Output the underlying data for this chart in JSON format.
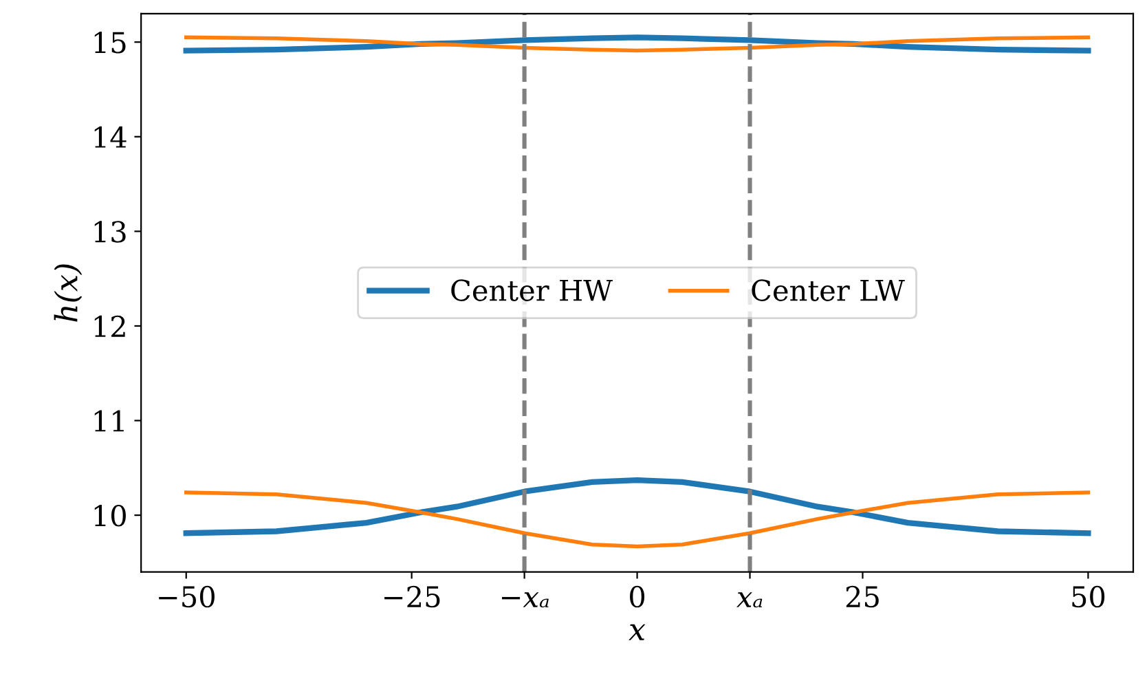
{
  "chart_data": {
    "type": "line",
    "xlabel": "x",
    "ylabel": "h(x)",
    "x": [
      -50,
      -40,
      -30,
      -24,
      -20,
      -12.5,
      -5,
      0,
      5,
      12.5,
      20,
      24,
      30,
      40,
      50
    ],
    "series": [
      {
        "name": "Center HW",
        "color": "#1f77b4",
        "values": [
          14.91,
          14.92,
          14.95,
          14.98,
          14.99,
          15.02,
          15.04,
          15.05,
          15.04,
          15.02,
          14.99,
          14.98,
          14.95,
          14.92,
          14.91
        ]
      },
      {
        "name": "Center LW",
        "color": "#ff7f0e",
        "values": [
          15.05,
          15.04,
          15.01,
          14.98,
          14.97,
          14.94,
          14.92,
          14.91,
          14.92,
          14.94,
          14.97,
          14.98,
          15.01,
          15.04,
          15.05
        ]
      },
      {
        "color": "#1f77b4",
        "values": [
          9.81,
          9.83,
          9.92,
          10.03,
          10.09,
          10.25,
          10.35,
          10.37,
          10.35,
          10.25,
          10.09,
          10.03,
          9.92,
          9.83,
          9.81
        ]
      },
      {
        "color": "#ff7f0e",
        "values": [
          10.24,
          10.22,
          10.13,
          10.03,
          9.96,
          9.81,
          9.69,
          9.67,
          9.69,
          9.81,
          9.96,
          10.03,
          10.13,
          10.22,
          10.24
        ]
      }
    ],
    "xlim": [
      -55,
      55
    ],
    "ylim": [
      9.4,
      15.3
    ],
    "xticks": [
      {
        "value": -50,
        "label": "−50"
      },
      {
        "value": -25,
        "label": "−25"
      },
      {
        "value": -12.5,
        "label": "−xₐ"
      },
      0,
      {
        "value": 12.5,
        "label": "xₐ"
      },
      25,
      50
    ],
    "yticks": [
      10,
      11,
      12,
      13,
      14,
      15
    ],
    "ref_lines": [
      {
        "axis": "x",
        "value": -12.5,
        "color": "#808080",
        "line_style": "dashed"
      },
      {
        "axis": "x",
        "value": 12.5,
        "color": "#808080",
        "line_style": "dashed"
      }
    ],
    "legend": "center",
    "grid": false,
    "marker": "none",
    "line_style": "solid"
  }
}
